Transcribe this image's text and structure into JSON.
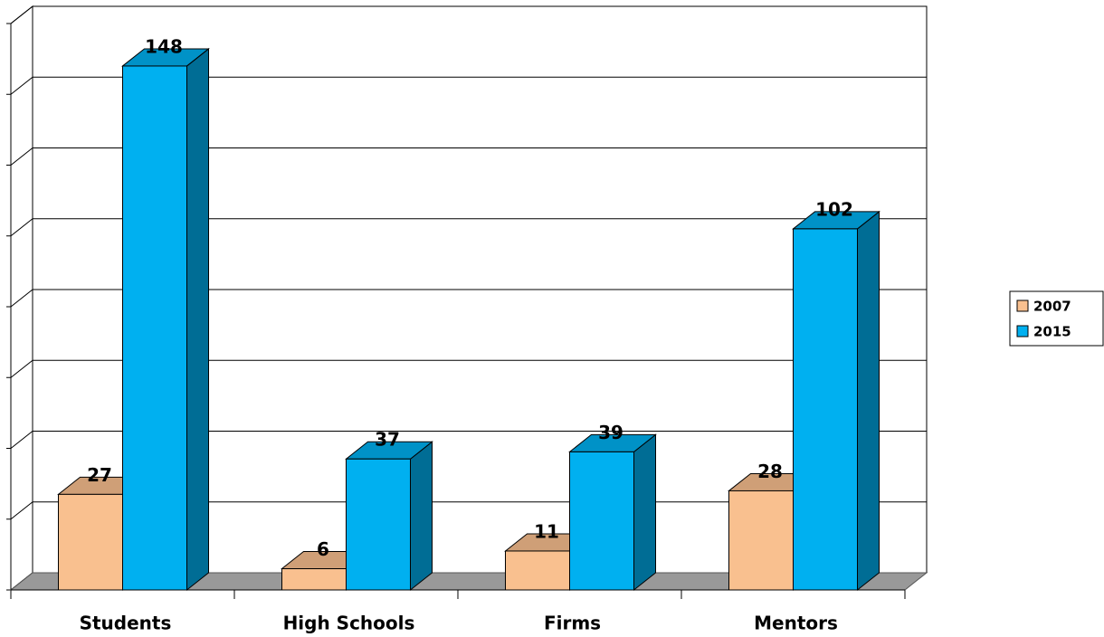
{
  "chart_data": {
    "type": "bar3d",
    "categories": [
      "Students",
      "High Schools",
      "Firms",
      "Mentors"
    ],
    "series": [
      {
        "name": "2007",
        "color": "#f9c08f",
        "values": [
          27,
          6,
          11,
          28
        ]
      },
      {
        "name": "2015",
        "color": "#00b0f0",
        "values": [
          148,
          37,
          39,
          102
        ]
      }
    ],
    "ylim": [
      0,
      160
    ],
    "yticks": [
      0,
      20,
      40,
      60,
      80,
      100,
      120,
      140,
      160
    ],
    "grid": true,
    "legend": "right"
  }
}
